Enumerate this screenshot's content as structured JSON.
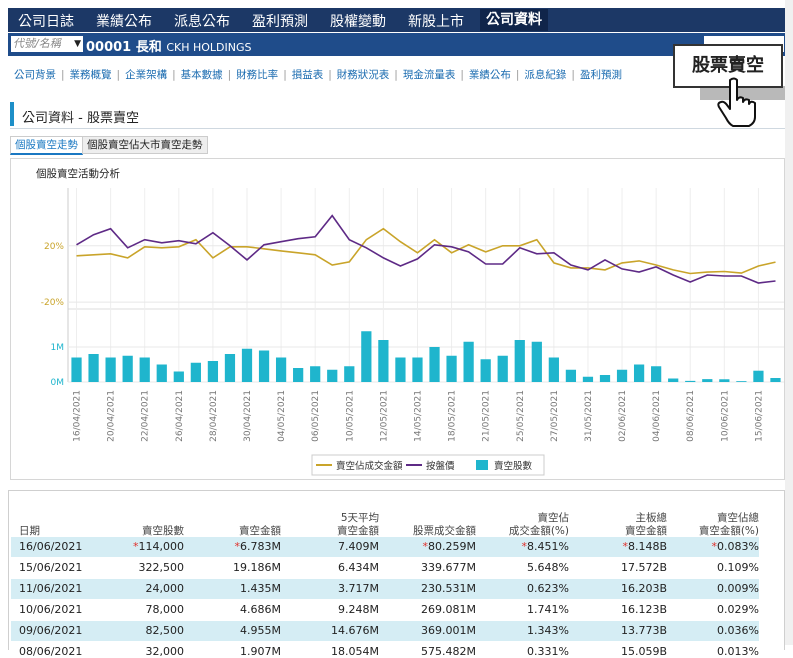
{
  "nav": {
    "tabs": [
      "公司日誌",
      "業績公布",
      "派息公布",
      "盈利預測",
      "股權變動",
      "新股上市",
      "公司資料"
    ],
    "active": 6
  },
  "search": {
    "placeholder": "代號/名稱",
    "code": "00001",
    "name": "長和",
    "name_en": "CKH HOLDINGS"
  },
  "links": [
    "公司背景",
    "業務概覽",
    "企業架構",
    "基本數據",
    "財務比率",
    "損益表",
    "財務狀況表",
    "現金流量表",
    "業績公布",
    "派息紀錄",
    "盈利預測"
  ],
  "callout": "股票賣空",
  "section_title": "公司資料 - 股票賣空",
  "subtabs": [
    "個股賣空走勢",
    "個股賣空佔大市賣空走勢"
  ],
  "chart_data": {
    "type": "combo",
    "title": "個股賣空活動分析",
    "categories": [
      "16/04/2021",
      null,
      "20/04/2021",
      null,
      "22/04/2021",
      null,
      "26/04/2021",
      null,
      "28/04/2021",
      null,
      "30/04/2021",
      null,
      "04/05/2021",
      null,
      "06/05/2021",
      null,
      "10/05/2021",
      null,
      "12/05/2021",
      null,
      "14/05/2021",
      null,
      "18/05/2021",
      null,
      "21/05/2021",
      null,
      "25/05/2021",
      null,
      "27/05/2021",
      null,
      "31/05/2021",
      null,
      "02/06/2021",
      null,
      "04/06/2021",
      null,
      "08/06/2021",
      null,
      "10/06/2021",
      null,
      "15/06/2021",
      null
    ],
    "ylim": [
      -22,
      61
    ],
    "yticks": [
      {
        "value": -20,
        "label": "-20%"
      },
      {
        "value": 20,
        "label": "20%"
      }
    ],
    "y2lim": [
      0,
      2000000
    ],
    "y2ticks": [
      {
        "value": 0,
        "label": "0M"
      },
      {
        "value": 1000000,
        "label": "1M"
      }
    ],
    "series": [
      {
        "name": "賣空佔成交金額",
        "type": "line",
        "color": "#c9a42a",
        "values": [
          12.9,
          13.6,
          14.3,
          11.4,
          19.3,
          18.6,
          19.3,
          24.3,
          11.4,
          19.3,
          19.3,
          17.9,
          16.4,
          15,
          13.6,
          6.4,
          8.6,
          24.3,
          32.1,
          22.9,
          15,
          24.3,
          15,
          20.7,
          15.7,
          20,
          20,
          24.3,
          7.9,
          4.3,
          4.3,
          2.9,
          7.9,
          9.3,
          6.4,
          2.9,
          0.331,
          1.343,
          1.741,
          0.623,
          5.648,
          8.451
        ]
      },
      {
        "name": "按盤價",
        "type": "line",
        "color": "#5e2a86",
        "values": [
          20.7,
          27.9,
          32.1,
          18.6,
          24.3,
          22.1,
          23.6,
          21.4,
          29.3,
          20,
          10,
          20.7,
          22.9,
          25,
          26.4,
          41.4,
          24.3,
          18.6,
          11.4,
          5.7,
          10.7,
          20.7,
          19.3,
          15.7,
          7.1,
          7.1,
          18.6,
          14.3,
          15,
          6.4,
          2.9,
          10,
          3.6,
          1.4,
          5,
          -0.7,
          -5.7,
          -0.7,
          -1.4,
          -1.4,
          -6.4,
          -5
        ]
      },
      {
        "name": "賣空股數",
        "type": "bar",
        "axis": "y2",
        "color": "#1fb5cd",
        "values": [
          700000,
          800000,
          700000,
          750000,
          700000,
          500000,
          300000,
          550000,
          600000,
          800000,
          950000,
          900000,
          700000,
          400000,
          450000,
          350000,
          450000,
          1450000,
          1200000,
          700000,
          700000,
          1000000,
          750000,
          1150000,
          650000,
          750000,
          1200000,
          1150000,
          700000,
          350000,
          150000,
          200000,
          350000,
          500000,
          450000,
          100000,
          32000,
          82500,
          78000,
          24000,
          322500,
          114000
        ]
      }
    ]
  },
  "table": {
    "headers": [
      [
        "日期"
      ],
      [
        "賣空股數"
      ],
      [
        "賣空金額"
      ],
      [
        "5天平均",
        "賣空金額"
      ],
      [
        "股票成交金額"
      ],
      [
        "賣空佔",
        "成交金額(%)"
      ],
      [
        "主板總",
        "賣空金額"
      ],
      [
        "賣空佔總",
        "賣空金額(%)"
      ]
    ],
    "rows": [
      [
        "16/06/2021",
        "*114,000",
        "*6.783M",
        "7.409M",
        "*80.259M",
        "*8.451%",
        "*8.148B",
        "*0.083%"
      ],
      [
        "15/06/2021",
        "322,500",
        "19.186M",
        "6.434M",
        "339.677M",
        "5.648%",
        "17.572B",
        "0.109%"
      ],
      [
        "11/06/2021",
        "24,000",
        "1.435M",
        "3.717M",
        "230.531M",
        "0.623%",
        "16.203B",
        "0.009%"
      ],
      [
        "10/06/2021",
        "78,000",
        "4.686M",
        "9.248M",
        "269.081M",
        "1.741%",
        "16.123B",
        "0.029%"
      ],
      [
        "09/06/2021",
        "82,500",
        "4.955M",
        "14.676M",
        "369.001M",
        "1.343%",
        "13.773B",
        "0.036%"
      ],
      [
        "08/06/2021",
        "32,000",
        "1.907M",
        "18.054M",
        "575.482M",
        "0.331%",
        "15.059B",
        "0.013%"
      ]
    ]
  }
}
